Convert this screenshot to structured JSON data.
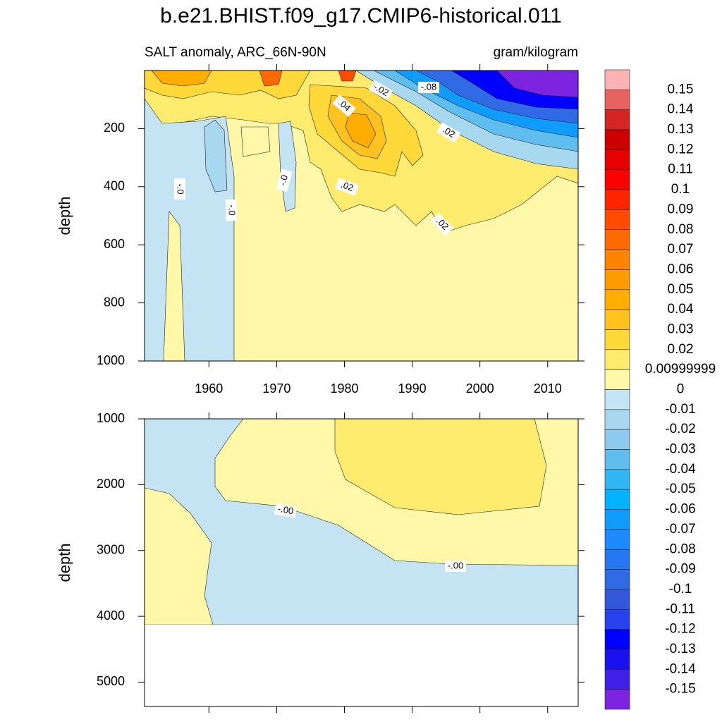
{
  "chart_data": [
    {
      "type": "contour",
      "title": "b.e21.BHIST.f09_g17.CMIP6-historical.011",
      "subtitle": "SALT anomaly, ARC_66N-90N",
      "units": "gram/kilogram",
      "y_label": "depth",
      "xlim": [
        1950.5,
        2014.5
      ],
      "xticks": [
        1960,
        1970,
        1980,
        1990,
        2000,
        2010
      ],
      "ylim": [
        0,
        1000
      ],
      "yticks": [
        200,
        400,
        600,
        800,
        1000
      ],
      "contour_labels": [
        "-.02",
        "-.08",
        ".04",
        ".02",
        "-.0",
        "-.0",
        "-.0",
        ".02",
        ".02"
      ],
      "colorbar": {
        "levels": [
          0.15,
          0.14,
          0.13,
          0.12,
          0.11,
          0.1,
          0.09,
          0.08,
          0.07,
          0.06,
          0.05,
          0.04,
          0.03,
          0.02,
          0.00999999,
          0,
          -0.01,
          -0.02,
          -0.03,
          -0.04,
          -0.05,
          -0.06,
          -0.07,
          -0.08,
          -0.09,
          -0.1,
          -0.11,
          -0.12,
          -0.13,
          -0.14,
          -0.15
        ],
        "colors": [
          "#fbb2b2",
          "#e86262",
          "#d42424",
          "#cc0000",
          "#e60000",
          "#ff0000",
          "#ff2400",
          "#ff4a00",
          "#ff6a00",
          "#ff8400",
          "#ff9a00",
          "#ffae00",
          "#ffc21e",
          "#ffd83a",
          "#ffeb6e",
          "#fff8a8",
          "#c4e4f4",
          "#a8d8f0",
          "#8dcaee",
          "#60beee",
          "#30b6f2",
          "#00b2ff",
          "#109cff",
          "#1e8aff",
          "#2678f2",
          "#306ae4",
          "#3458da",
          "#2840ee",
          "#0000ff",
          "#1a10f0",
          "#4020e8",
          "#7c24e0"
        ]
      }
    },
    {
      "type": "contour",
      "y_label": "depth",
      "xlim": [
        1950.5,
        2014.5
      ],
      "xticks": [
        1960,
        1970,
        1980,
        1990,
        2000,
        2010
      ],
      "ylim": [
        1000,
        5370
      ],
      "yticks": [
        1000,
        2000,
        3000,
        4000,
        5000
      ],
      "contour_labels": [
        "-.00",
        "-.00"
      ]
    }
  ]
}
